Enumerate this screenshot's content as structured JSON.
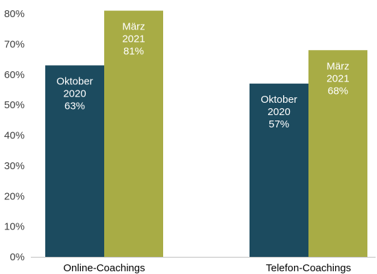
{
  "chart_data": {
    "type": "bar",
    "categories": [
      "Online-Coachings",
      "Telefon-Coachings"
    ],
    "series": [
      {
        "values": [
          63,
          57
        ],
        "color": "#1c4b5f",
        "bar_labels": [
          [
            "Oktober",
            "2020",
            "63%"
          ],
          [
            "Oktober",
            "2020",
            "57%"
          ]
        ]
      },
      {
        "values": [
          81,
          68
        ],
        "color": "#a8ac45",
        "bar_labels": [
          [
            "März",
            "2021",
            "81%"
          ],
          [
            "März",
            "2021",
            "68%"
          ]
        ]
      }
    ],
    "ylim": [
      0,
      80
    ],
    "yticks": [
      0,
      10,
      20,
      30,
      40,
      50,
      60,
      70,
      80
    ],
    "ytick_labels": [
      "0%",
      "10%",
      "20%",
      "30%",
      "40%",
      "50%",
      "60%",
      "70%",
      "80%"
    ],
    "axis_color": "#bfbfbf",
    "grid": false,
    "legend": "none"
  }
}
